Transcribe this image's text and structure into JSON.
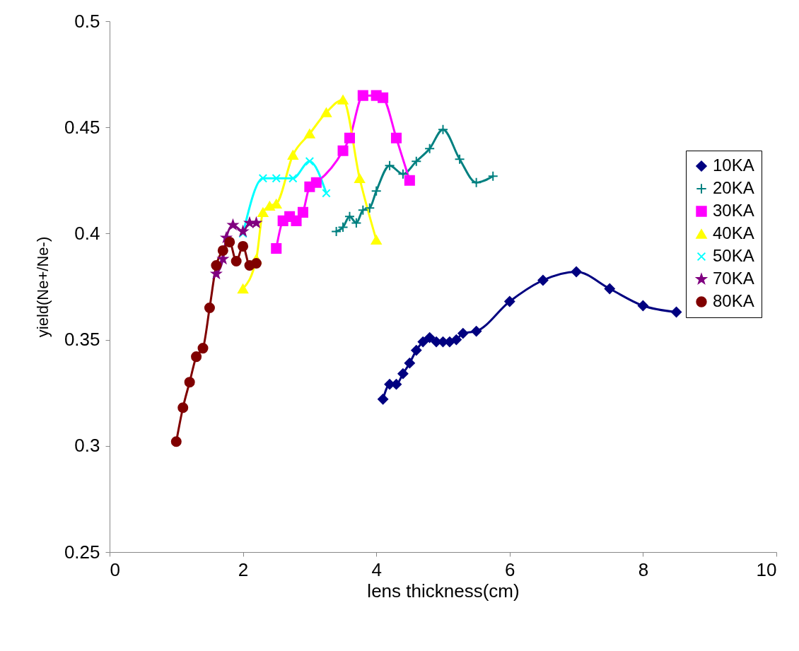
{
  "chart_data": {
    "type": "line",
    "xlabel": "lens thickness(cm)",
    "ylabel": "yield(Ne+/Ne-)",
    "xlim": [
      0,
      10
    ],
    "ylim": [
      0.25,
      0.5
    ],
    "xticks": [
      0,
      2,
      4,
      6,
      8,
      10
    ],
    "yticks": [
      0.25,
      0.3,
      0.35,
      0.4,
      0.45,
      0.5
    ],
    "grid": false,
    "legend": "right",
    "series": [
      {
        "name": "10KA",
        "color": "#000080",
        "marker": "diamond",
        "x": [
          4.1,
          4.2,
          4.3,
          4.4,
          4.5,
          4.6,
          4.7,
          4.8,
          4.9,
          5.0,
          5.1,
          5.2,
          5.3,
          5.5,
          6,
          6.5,
          7,
          7.5,
          8,
          8.5
        ],
        "values": [
          0.322,
          0.329,
          0.329,
          0.334,
          0.339,
          0.345,
          0.349,
          0.351,
          0.349,
          0.349,
          0.349,
          0.35,
          0.353,
          0.354,
          0.368,
          0.378,
          0.382,
          0.374,
          0.366,
          0.363
        ]
      },
      {
        "name": "20KA",
        "color": "#008080",
        "marker": "cross",
        "x": [
          3.4,
          3.5,
          3.6,
          3.7,
          3.8,
          3.9,
          4.0,
          4.2,
          4.4,
          4.6,
          4.8,
          5.0,
          5.25,
          5.5,
          5.75
        ],
        "values": [
          0.401,
          0.403,
          0.408,
          0.405,
          0.411,
          0.412,
          0.42,
          0.432,
          0.428,
          0.434,
          0.44,
          0.449,
          0.435,
          0.424,
          0.427
        ]
      },
      {
        "name": "30KA",
        "color": "#ff00ff",
        "marker": "square",
        "x": [
          2.5,
          2.6,
          2.7,
          2.8,
          2.9,
          3.0,
          3.1,
          3.5,
          3.6,
          3.8,
          4.0,
          4.1,
          4.3,
          4.5
        ],
        "values": [
          0.393,
          0.406,
          0.408,
          0.406,
          0.41,
          0.422,
          0.424,
          0.439,
          0.445,
          0.465,
          0.465,
          0.464,
          0.445,
          0.425
        ]
      },
      {
        "name": "40KA",
        "color": "#ffff00",
        "marker": "triangle",
        "x": [
          2.0,
          2.2,
          2.3,
          2.4,
          2.5,
          2.75,
          3.0,
          3.25,
          3.5,
          3.75,
          4.0
        ],
        "values": [
          0.374,
          0.388,
          0.41,
          0.413,
          0.414,
          0.437,
          0.447,
          0.457,
          0.463,
          0.426,
          0.397
        ]
      },
      {
        "name": "50KA",
        "color": "#00ffff",
        "marker": "x",
        "x": [
          2.0,
          2.3,
          2.5,
          2.75,
          3.0,
          3.25
        ],
        "values": [
          0.4,
          0.426,
          0.426,
          0.426,
          0.434,
          0.419
        ]
      },
      {
        "name": "70KA",
        "color": "#800080",
        "marker": "star",
        "x": [
          1.6,
          1.7,
          1.75,
          1.85,
          2.0,
          2.1,
          2.2
        ],
        "values": [
          0.381,
          0.388,
          0.398,
          0.404,
          0.401,
          0.405,
          0.405
        ]
      },
      {
        "name": "80KA",
        "color": "#800000",
        "marker": "circle",
        "x": [
          1,
          1.1,
          1.2,
          1.3,
          1.4,
          1.5,
          1.6,
          1.7,
          1.8,
          1.9,
          2.0,
          2.1,
          2.2
        ],
        "values": [
          0.302,
          0.318,
          0.33,
          0.342,
          0.346,
          0.365,
          0.385,
          0.392,
          0.396,
          0.387,
          0.394,
          0.385,
          0.386
        ]
      }
    ]
  }
}
